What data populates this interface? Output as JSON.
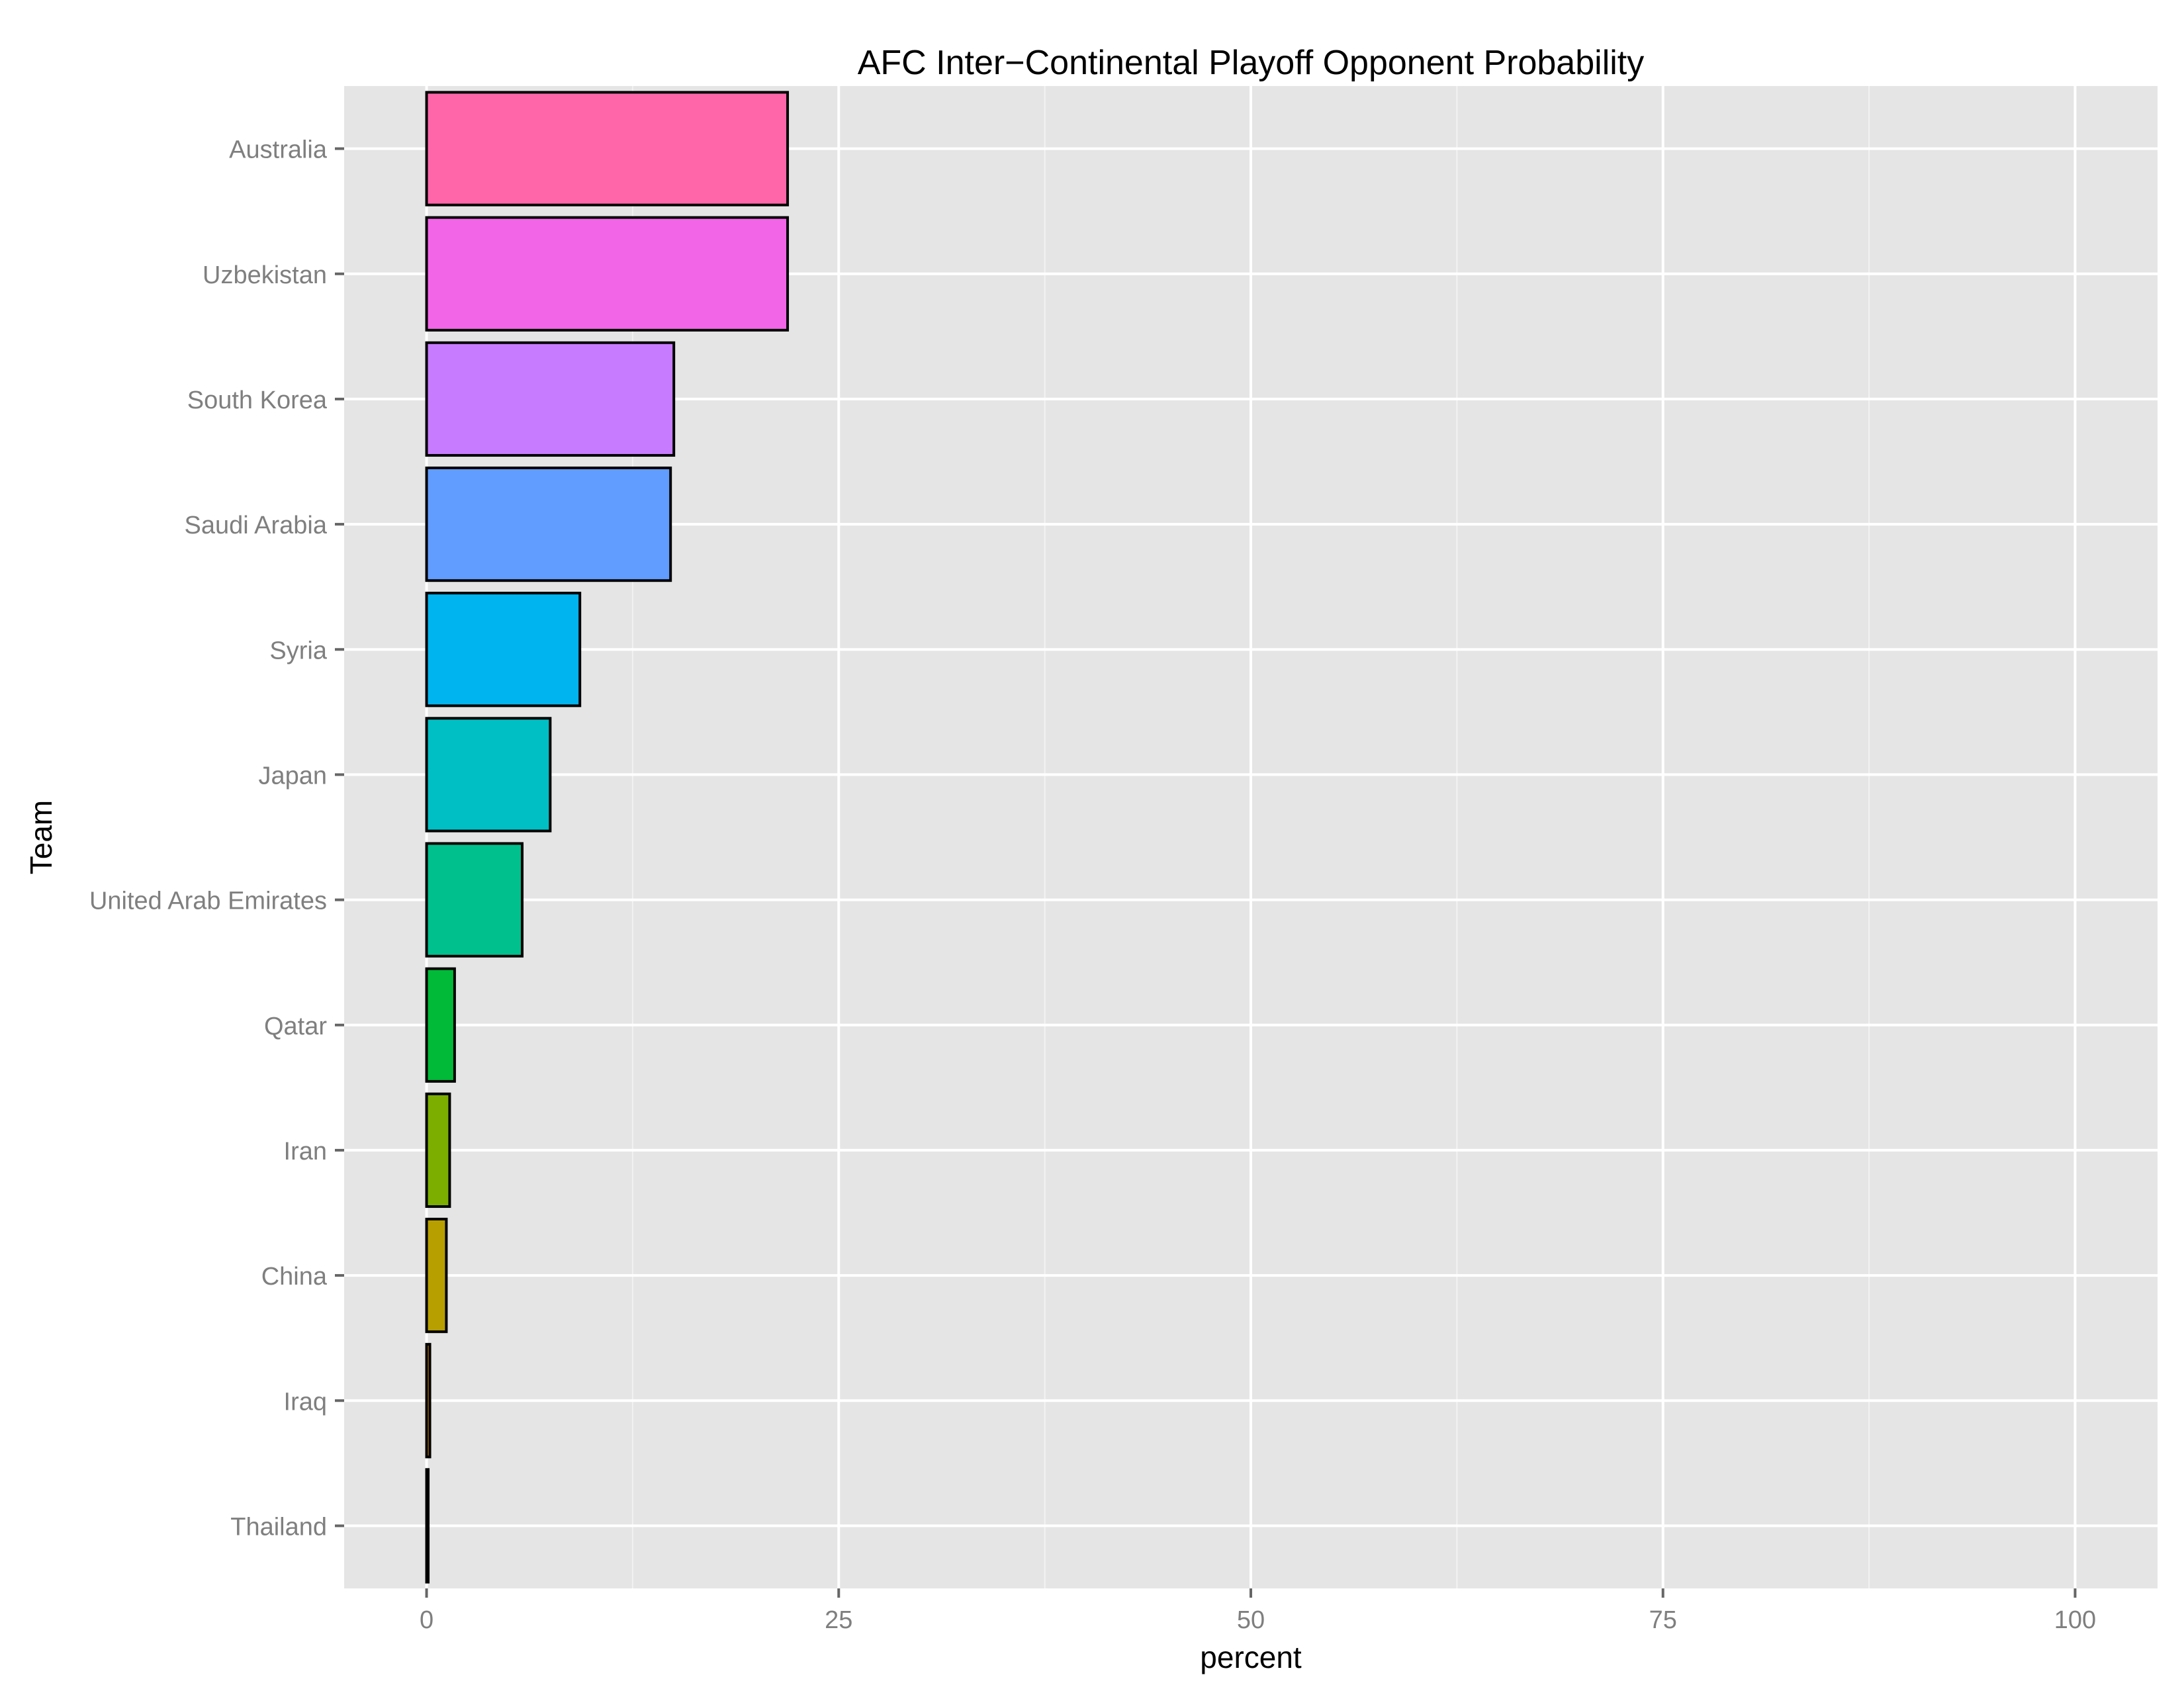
{
  "chart_data": {
    "type": "bar",
    "orientation": "horizontal",
    "title": "AFC Inter−Continental Playoff Opponent Probability",
    "xlabel": "percent",
    "ylabel": "Team",
    "xlim": [
      -5,
      105
    ],
    "x_ticks": [
      0,
      25,
      50,
      75,
      100
    ],
    "x_minor_ticks": [
      12.5,
      37.5,
      62.5,
      87.5
    ],
    "grid": true,
    "legend": "none",
    "categories": [
      "Australia",
      "Uzbekistan",
      "South Korea",
      "Saudi Arabia",
      "Syria",
      "Japan",
      "United Arab Emirates",
      "Qatar",
      "Iran",
      "China",
      "Iraq",
      "Thailand"
    ],
    "values": [
      21.9,
      21.9,
      15.0,
      14.8,
      9.3,
      7.5,
      5.8,
      1.7,
      1.4,
      1.2,
      0.2,
      0.1
    ],
    "colors": [
      "#FF66AA",
      "#F265E7",
      "#C77CFF",
      "#619CFF",
      "#00B4EF",
      "#00BFC4",
      "#00C08D",
      "#00BA38",
      "#7CAE00",
      "#B79F00",
      "#DE8C00",
      "#F8766D"
    ]
  }
}
